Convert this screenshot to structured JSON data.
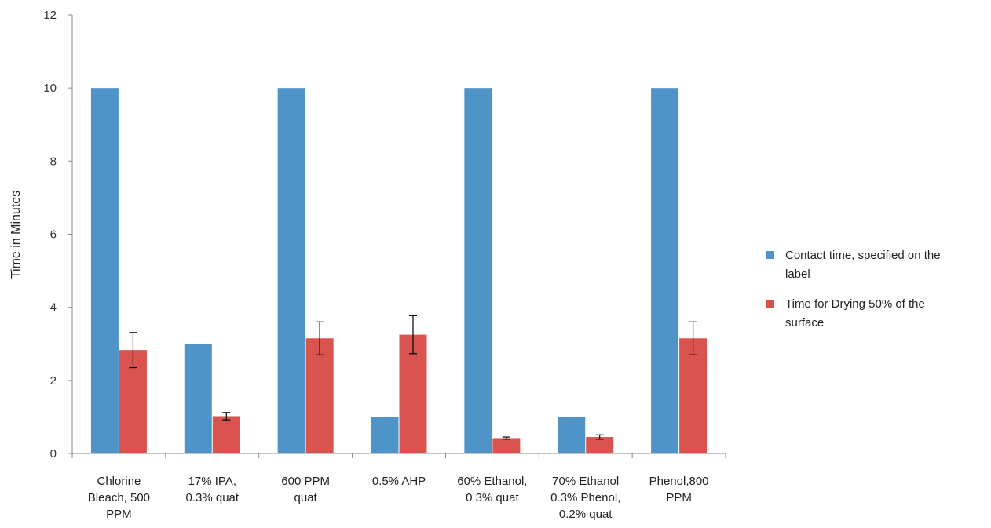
{
  "chart_data": {
    "type": "bar",
    "title": "",
    "xlabel": "",
    "ylabel": "Time in Minutes",
    "ylim": [
      0,
      12
    ],
    "yticks": [
      0,
      2,
      4,
      6,
      8,
      10,
      12
    ],
    "grid": false,
    "legend_position": "right",
    "categories": [
      [
        "Chlorine",
        "Bleach, 500",
        "PPM"
      ],
      [
        "17% IPA,",
        "0.3% quat"
      ],
      [
        "600 PPM",
        "quat"
      ],
      [
        "0.5% AHP"
      ],
      [
        "60% Ethanol,",
        "0.3% quat"
      ],
      [
        "70% Ethanol",
        "0.3% Phenol,",
        "0.2% quat"
      ],
      [
        "Phenol,800",
        "PPM"
      ]
    ],
    "series": [
      {
        "name": "Contact time, specified on the label",
        "color": "#4f94c9",
        "values": [
          10,
          3,
          10,
          1,
          10,
          1,
          10
        ]
      },
      {
        "name": "Time for Drying 50% of the surface",
        "color": "#d9534f",
        "values": [
          2.83,
          1.02,
          3.15,
          3.25,
          0.42,
          0.45,
          3.15
        ],
        "error": [
          0.48,
          0.1,
          0.45,
          0.52,
          0.03,
          0.06,
          0.45
        ]
      }
    ]
  }
}
